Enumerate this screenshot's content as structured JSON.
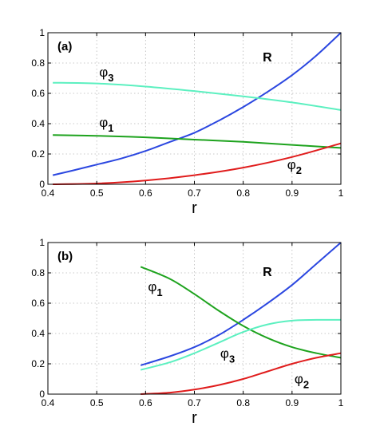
{
  "chart_data": [
    {
      "type": "line",
      "panel_label": "(a)",
      "xlabel": "r",
      "ylabel": "",
      "xlim": [
        0.4,
        1.0
      ],
      "ylim": [
        0,
        1
      ],
      "xticks": [
        "0.4",
        "0.5",
        "0.6",
        "0.7",
        "0.8",
        "0.9",
        "1"
      ],
      "yticks": [
        "0",
        "0.2",
        "0.4",
        "0.6",
        "0.8",
        "1"
      ],
      "grid": true,
      "series": [
        {
          "name": "R",
          "color": "#2b47e0",
          "x": [
            0.41,
            0.45,
            0.5,
            0.55,
            0.6,
            0.65,
            0.7,
            0.75,
            0.8,
            0.85,
            0.9,
            0.95,
            1.0
          ],
          "y": [
            0.06,
            0.09,
            0.13,
            0.17,
            0.22,
            0.28,
            0.34,
            0.42,
            0.51,
            0.61,
            0.72,
            0.85,
            1.0
          ],
          "label_main": "R",
          "label_sub": "",
          "label_pos": {
            "x": 0.84,
            "y": 0.81
          }
        },
        {
          "name": "φ3",
          "color": "#5cf0c0",
          "x": [
            0.41,
            0.5,
            0.6,
            0.7,
            0.8,
            0.9,
            1.0
          ],
          "y": [
            0.67,
            0.665,
            0.645,
            0.615,
            0.58,
            0.54,
            0.49
          ],
          "label_main": "φ",
          "label_sub": "3",
          "label_pos": {
            "x": 0.505,
            "y": 0.71
          }
        },
        {
          "name": "φ1",
          "color": "#1ea31e",
          "x": [
            0.41,
            0.5,
            0.6,
            0.7,
            0.8,
            0.9,
            1.0
          ],
          "y": [
            0.325,
            0.32,
            0.31,
            0.295,
            0.28,
            0.26,
            0.24
          ],
          "label_main": "φ",
          "label_sub": "1",
          "label_pos": {
            "x": 0.505,
            "y": 0.38
          }
        },
        {
          "name": "φ2",
          "color": "#e01c1c",
          "x": [
            0.41,
            0.5,
            0.6,
            0.7,
            0.8,
            0.9,
            1.0
          ],
          "y": [
            0.0,
            0.005,
            0.025,
            0.06,
            0.11,
            0.18,
            0.27
          ],
          "label_main": "φ",
          "label_sub": "2",
          "label_pos": {
            "x": 0.89,
            "y": 0.1
          }
        }
      ]
    },
    {
      "type": "line",
      "panel_label": "(b)",
      "xlabel": "r",
      "ylabel": "",
      "xlim": [
        0.4,
        1.0
      ],
      "ylim": [
        0,
        1
      ],
      "xticks": [
        "0.4",
        "0.5",
        "0.6",
        "0.7",
        "0.8",
        "0.9",
        "1"
      ],
      "yticks": [
        "0",
        "0.2",
        "0.4",
        "0.6",
        "0.8",
        "1"
      ],
      "grid": true,
      "series": [
        {
          "name": "R",
          "color": "#2b47e0",
          "x": [
            0.59,
            0.65,
            0.7,
            0.75,
            0.8,
            0.85,
            0.9,
            0.95,
            1.0
          ],
          "y": [
            0.19,
            0.25,
            0.31,
            0.39,
            0.49,
            0.6,
            0.72,
            0.86,
            1.0
          ],
          "label_main": "R",
          "label_sub": "",
          "label_pos": {
            "x": 0.84,
            "y": 0.78
          }
        },
        {
          "name": "φ1",
          "color": "#1ea31e",
          "x": [
            0.59,
            0.65,
            0.7,
            0.75,
            0.8,
            0.85,
            0.9,
            0.95,
            1.0
          ],
          "y": [
            0.84,
            0.76,
            0.66,
            0.55,
            0.45,
            0.37,
            0.31,
            0.27,
            0.24
          ],
          "label_main": "φ",
          "label_sub": "1",
          "label_pos": {
            "x": 0.605,
            "y": 0.68
          }
        },
        {
          "name": "φ3",
          "color": "#5cf0c0",
          "x": [
            0.59,
            0.65,
            0.7,
            0.75,
            0.8,
            0.85,
            0.9,
            0.95,
            1.0
          ],
          "y": [
            0.16,
            0.21,
            0.27,
            0.34,
            0.41,
            0.46,
            0.485,
            0.49,
            0.49
          ],
          "label_main": "φ",
          "label_sub": "3",
          "label_pos": {
            "x": 0.753,
            "y": 0.24
          }
        },
        {
          "name": "φ2",
          "color": "#e01c1c",
          "x": [
            0.59,
            0.65,
            0.7,
            0.75,
            0.8,
            0.85,
            0.9,
            0.95,
            1.0
          ],
          "y": [
            0.0,
            0.01,
            0.03,
            0.06,
            0.1,
            0.15,
            0.2,
            0.24,
            0.27
          ],
          "label_main": "φ",
          "label_sub": "2",
          "label_pos": {
            "x": 0.905,
            "y": 0.07
          }
        }
      ]
    }
  ]
}
